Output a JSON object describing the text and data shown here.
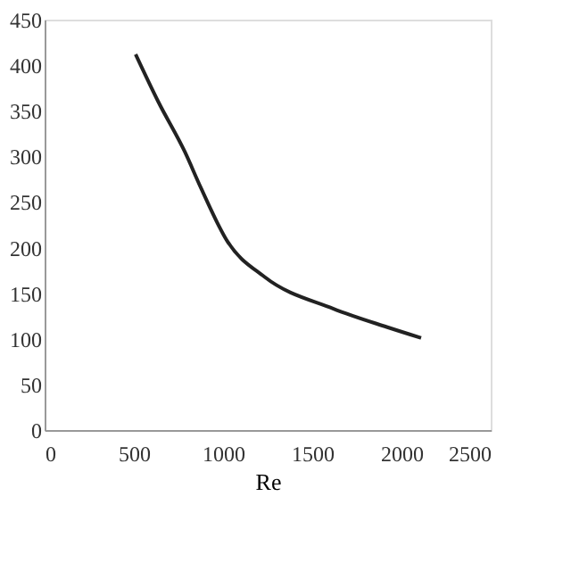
{
  "chart_data": {
    "type": "line",
    "xlabel": "Re",
    "x": [
      510,
      637,
      786,
      875,
      1024,
      1232,
      1619,
      1917,
      2110
    ],
    "series": [
      {
        "color": "#222222",
        "values": [
          412,
          360,
          305,
          266,
          207,
          168,
          133,
          113,
          101
        ]
      }
    ],
    "xlim": [
      0,
      2500
    ],
    "xticks": [
      0,
      500,
      1000,
      1500,
      2000,
      2500
    ],
    "ylim": [
      0,
      450
    ],
    "yticks": [
      0,
      50,
      100,
      150,
      200,
      250,
      300,
      350,
      400,
      450
    ],
    "grid": false,
    "marker": "none",
    "line_style": "solid"
  }
}
